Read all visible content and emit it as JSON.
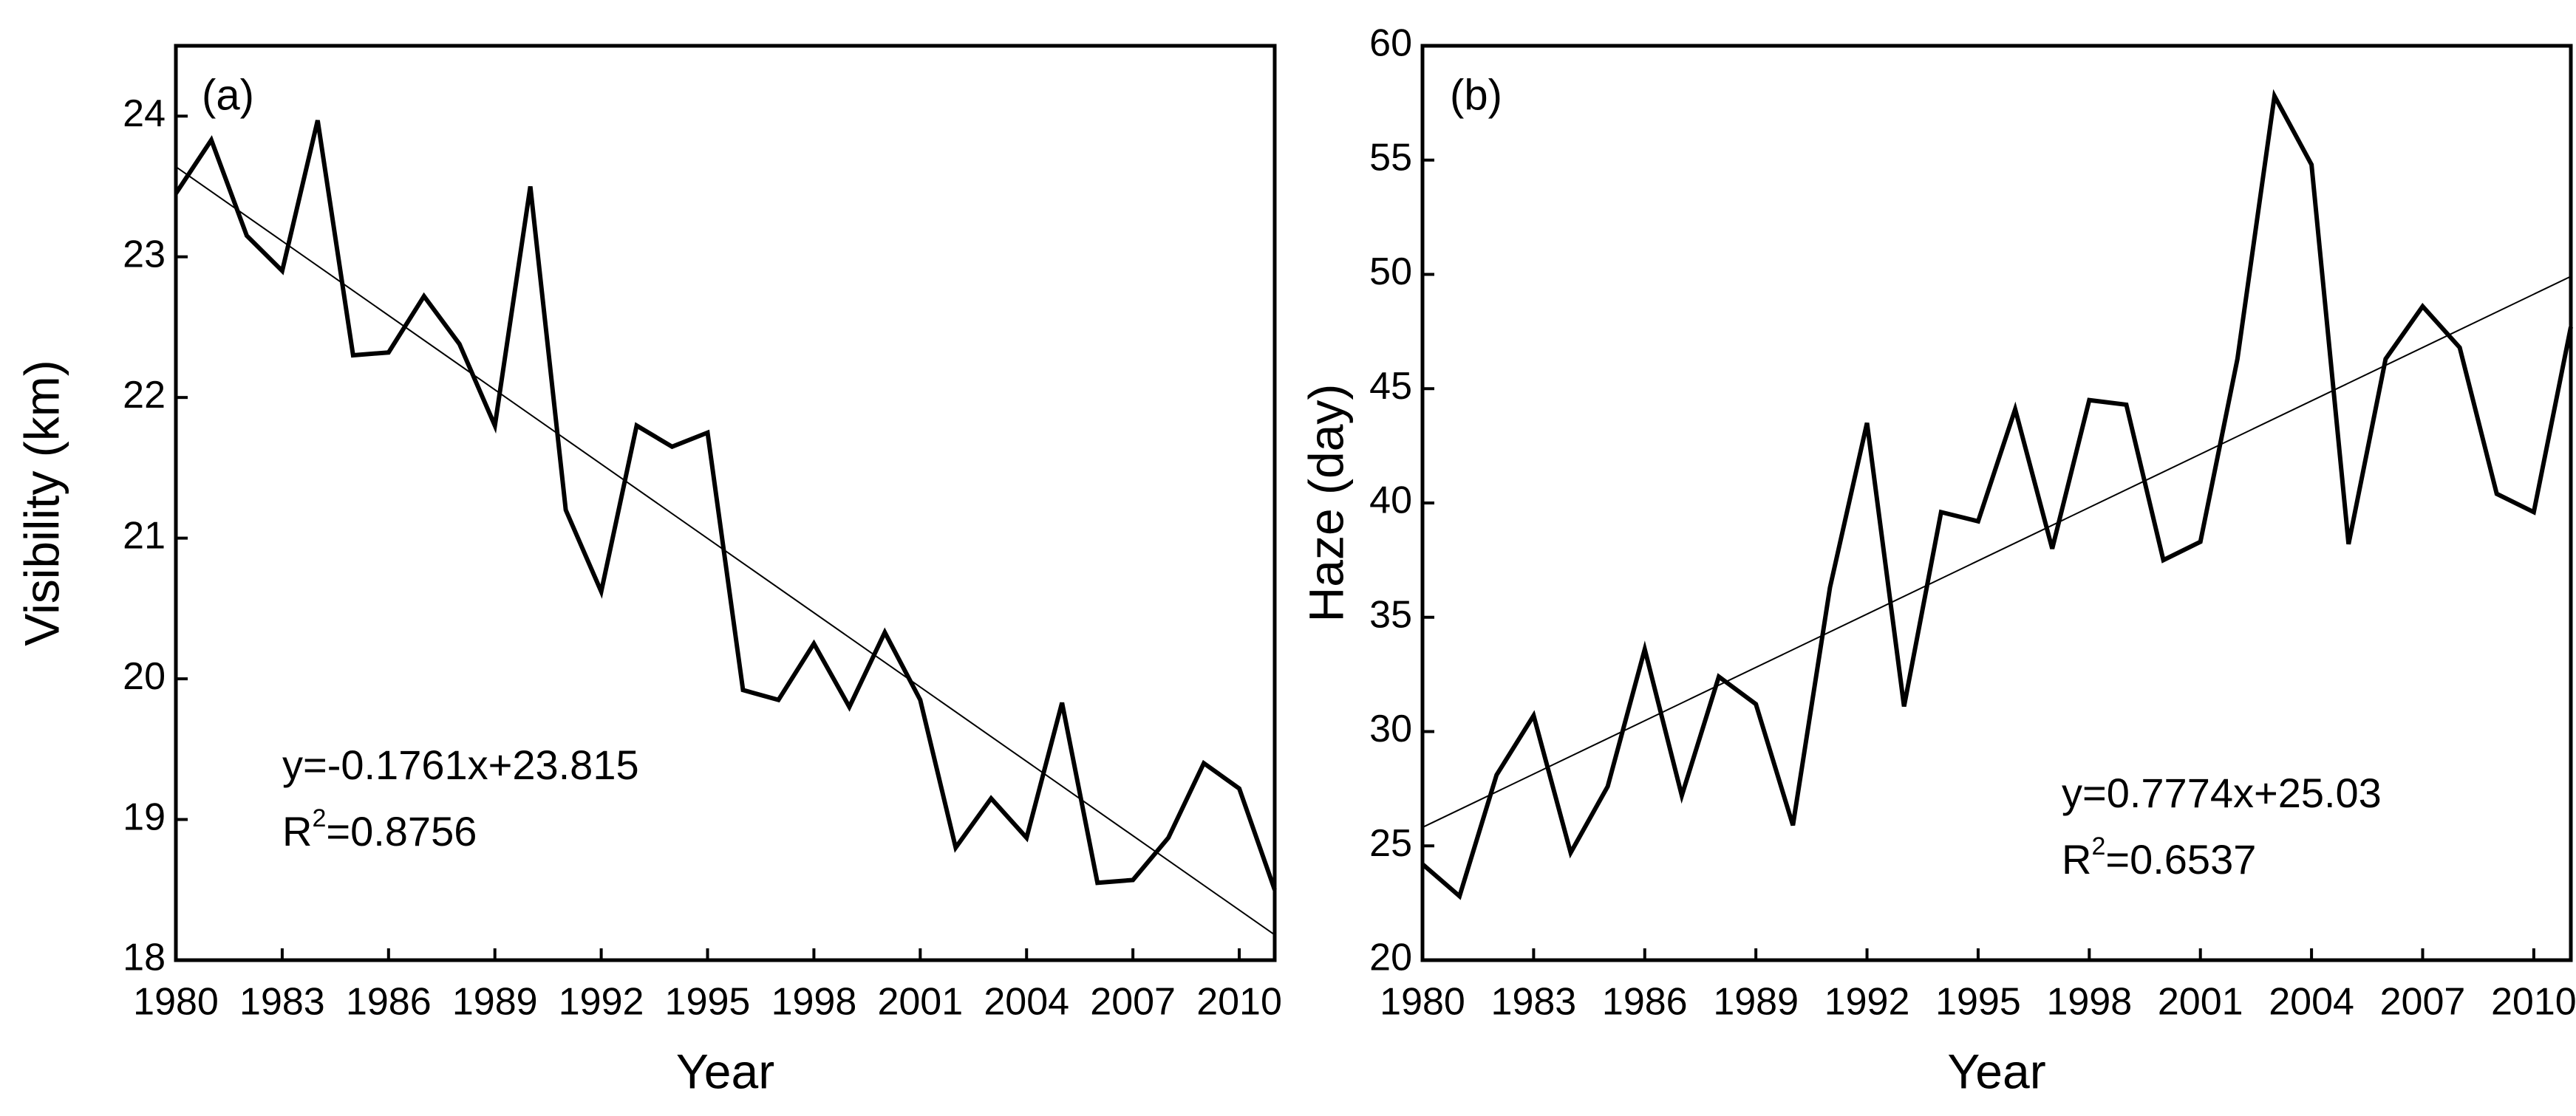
{
  "chart_data": [
    {
      "type": "line",
      "panel_label": "(a)",
      "x_label": "Year",
      "y_label": "Visibility (km)",
      "x": [
        1980,
        1981,
        1982,
        1983,
        1984,
        1985,
        1986,
        1987,
        1988,
        1989,
        1990,
        1991,
        1992,
        1993,
        1994,
        1995,
        1996,
        1997,
        1998,
        1999,
        2000,
        2001,
        2002,
        2003,
        2004,
        2005,
        2006,
        2007,
        2008,
        2009,
        2010,
        2011
      ],
      "values": [
        23.45,
        23.83,
        23.15,
        22.9,
        23.97,
        22.3,
        22.32,
        22.72,
        22.38,
        21.8,
        23.5,
        21.2,
        20.62,
        21.8,
        21.65,
        21.75,
        19.92,
        19.85,
        20.25,
        19.8,
        20.33,
        19.85,
        18.8,
        19.15,
        18.87,
        19.83,
        18.55,
        18.57,
        18.87,
        19.4,
        19.22,
        18.5
      ],
      "color": "#000000",
      "trend": {
        "x": [
          1980,
          2011
        ],
        "values": [
          23.64,
          18.18
        ],
        "equation": "y=-0.1761x+23.815",
        "r2_label": [
          "R",
          "2",
          "=0.8756"
        ]
      },
      "xlim": [
        1980,
        2011
      ],
      "xticks": [
        1980,
        1983,
        1986,
        1989,
        1992,
        1995,
        1998,
        2001,
        2004,
        2007,
        2010
      ],
      "ylim": [
        18,
        24.5
      ],
      "yticks": [
        18,
        19,
        20,
        21,
        22,
        23,
        24
      ]
    },
    {
      "type": "line",
      "panel_label": "(b)",
      "x_label": "Year",
      "y_label": "Haze (day)",
      "x": [
        1980,
        1981,
        1982,
        1983,
        1984,
        1985,
        1986,
        1987,
        1988,
        1989,
        1990,
        1991,
        1992,
        1993,
        1994,
        1995,
        1996,
        1997,
        1998,
        1999,
        2000,
        2001,
        2002,
        2003,
        2004,
        2005,
        2006,
        2007,
        2008,
        2009,
        2010,
        2011
      ],
      "values": [
        24.2,
        22.8,
        28.1,
        30.7,
        24.7,
        27.6,
        33.6,
        27.2,
        32.4,
        31.2,
        25.9,
        36.3,
        43.5,
        31.1,
        39.6,
        39.2,
        44.1,
        38.0,
        44.5,
        44.3,
        37.5,
        38.3,
        46.3,
        57.8,
        54.8,
        38.2,
        46.3,
        48.6,
        46.8,
        40.4,
        39.6,
        47.7
      ],
      "color": "#000000",
      "trend": {
        "x": [
          1980,
          2011
        ],
        "values": [
          25.81,
          49.91
        ],
        "equation": "y=0.7774x+25.03",
        "r2_label": [
          "R",
          "2",
          "=0.6537"
        ]
      },
      "xlim": [
        1980,
        2011
      ],
      "xticks": [
        1980,
        1983,
        1986,
        1989,
        1992,
        1995,
        1998,
        2001,
        2004,
        2007,
        2010
      ],
      "ylim": [
        20,
        60
      ],
      "yticks": [
        20,
        25,
        30,
        35,
        40,
        45,
        50,
        55,
        60
      ]
    }
  ]
}
